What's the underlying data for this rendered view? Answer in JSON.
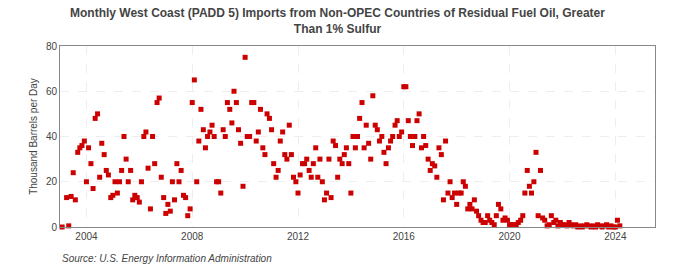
{
  "chart_data": {
    "type": "scatter",
    "title": "Monthly West Coast (PADD 5) Imports from Non-OPEC Countries of Residual Fuel Oil, Greater\nThan 1% Sulfur",
    "ylabel": "Thousand Barrels per Day",
    "annotations": [
      "Source: U.S. Energy Information Administration"
    ],
    "color": "#CC0000",
    "marker": "square",
    "grid": true,
    "xlim": [
      2003.0,
      2025.5
    ],
    "xticks": [
      2004,
      2008,
      2012,
      2016,
      2020,
      2024
    ],
    "ylim": [
      0,
      80
    ],
    "yticks": [
      0,
      20,
      40,
      60,
      80
    ],
    "x": [
      2003.08,
      2003.25,
      2003.33,
      2003.42,
      2003.5,
      2003.58,
      2003.67,
      2003.75,
      2003.83,
      2003.92,
      2004.0,
      2004.08,
      2004.17,
      2004.25,
      2004.33,
      2004.42,
      2004.5,
      2004.58,
      2004.67,
      2004.75,
      2004.83,
      2004.92,
      2005.0,
      2005.08,
      2005.17,
      2005.25,
      2005.33,
      2005.42,
      2005.5,
      2005.58,
      2005.67,
      2005.75,
      2005.83,
      2005.92,
      2006.0,
      2006.08,
      2006.17,
      2006.25,
      2006.33,
      2006.42,
      2006.5,
      2006.58,
      2006.67,
      2006.75,
      2006.83,
      2006.92,
      2007.0,
      2007.08,
      2007.17,
      2007.25,
      2007.33,
      2007.42,
      2007.5,
      2007.58,
      2007.67,
      2007.75,
      2007.83,
      2007.92,
      2008.0,
      2008.08,
      2008.17,
      2008.25,
      2008.33,
      2008.42,
      2008.5,
      2008.58,
      2008.67,
      2008.75,
      2008.83,
      2008.92,
      2009.0,
      2009.08,
      2009.17,
      2009.25,
      2009.33,
      2009.42,
      2009.5,
      2009.58,
      2009.67,
      2009.75,
      2009.83,
      2009.92,
      2010.0,
      2010.08,
      2010.17,
      2010.25,
      2010.33,
      2010.42,
      2010.5,
      2010.58,
      2010.67,
      2010.75,
      2010.83,
      2010.92,
      2011.0,
      2011.08,
      2011.17,
      2011.25,
      2011.33,
      2011.42,
      2011.5,
      2011.58,
      2011.67,
      2011.75,
      2011.83,
      2011.92,
      2012.0,
      2012.08,
      2012.17,
      2012.25,
      2012.33,
      2012.42,
      2012.5,
      2012.58,
      2012.67,
      2012.75,
      2012.83,
      2012.92,
      2013.0,
      2013.08,
      2013.17,
      2013.25,
      2013.33,
      2013.42,
      2013.5,
      2013.58,
      2013.67,
      2013.75,
      2013.83,
      2013.92,
      2014.0,
      2014.08,
      2014.17,
      2014.25,
      2014.33,
      2014.42,
      2014.5,
      2014.58,
      2014.67,
      2014.75,
      2014.83,
      2014.92,
      2015.0,
      2015.08,
      2015.17,
      2015.25,
      2015.33,
      2015.42,
      2015.5,
      2015.58,
      2015.67,
      2015.75,
      2015.83,
      2015.92,
      2016.0,
      2016.08,
      2016.17,
      2016.25,
      2016.33,
      2016.42,
      2016.5,
      2016.58,
      2016.67,
      2016.75,
      2016.83,
      2016.92,
      2017.0,
      2017.08,
      2017.17,
      2017.25,
      2017.33,
      2017.42,
      2017.5,
      2017.58,
      2017.67,
      2017.75,
      2017.83,
      2017.92,
      2018.0,
      2018.08,
      2018.17,
      2018.25,
      2018.33,
      2018.42,
      2018.5,
      2018.58,
      2018.67,
      2018.75,
      2018.83,
      2018.92,
      2019.0,
      2019.08,
      2019.17,
      2019.25,
      2019.33,
      2019.42,
      2019.5,
      2019.58,
      2019.67,
      2019.75,
      2019.83,
      2019.92,
      2020.0,
      2020.08,
      2020.17,
      2020.25,
      2020.33,
      2020.42,
      2020.5,
      2020.58,
      2020.67,
      2020.75,
      2020.83,
      2020.92,
      2021.0,
      2021.08,
      2021.17,
      2021.25,
      2021.33,
      2021.42,
      2021.5,
      2021.58,
      2021.67,
      2021.75,
      2021.83,
      2021.92,
      2022.0,
      2022.08,
      2022.17,
      2022.25,
      2022.33,
      2022.42,
      2022.5,
      2022.58,
      2022.67,
      2022.75,
      2022.83,
      2022.92,
      2023.0,
      2023.08,
      2023.17,
      2023.25,
      2023.33,
      2023.42,
      2023.5,
      2023.58,
      2023.67,
      2023.75,
      2023.83,
      2023.92,
      2024.0,
      2024.08,
      2024.17
    ],
    "values": [
      0.0,
      13.0,
      0.5,
      13.5,
      24.0,
      12.0,
      33.0,
      35.0,
      36.0,
      38.0,
      20.0,
      35.0,
      28.0,
      17.0,
      48.0,
      50.0,
      22.0,
      37.0,
      32.0,
      25.0,
      23.0,
      13.0,
      14.0,
      20.0,
      15.0,
      20.0,
      25.0,
      40.0,
      30.0,
      20.0,
      25.0,
      12.0,
      14.0,
      13.0,
      11.0,
      20.0,
      40.0,
      42.0,
      26.0,
      8.0,
      40.0,
      28.0,
      55.0,
      57.0,
      22.0,
      13.0,
      6.0,
      10.0,
      7.0,
      20.0,
      12.0,
      28.0,
      20.0,
      25.0,
      14.0,
      13.0,
      5.0,
      8.0,
      55.0,
      65.0,
      20.0,
      38.0,
      52.0,
      43.0,
      35.0,
      40.0,
      42.0,
      45.0,
      40.0,
      20.0,
      20.0,
      15.0,
      43.0,
      40.0,
      55.0,
      52.0,
      46.0,
      60.0,
      55.0,
      43.0,
      37.0,
      18.0,
      75.0,
      40.0,
      40.0,
      55.0,
      55.0,
      38.0,
      42.0,
      52.0,
      35.0,
      32.0,
      50.0,
      48.0,
      43.0,
      28.0,
      22.0,
      25.0,
      38.0,
      42.0,
      32.0,
      30.0,
      45.0,
      32.0,
      22.0,
      20.0,
      15.0,
      23.0,
      28.0,
      28.0,
      30.0,
      25.0,
      22.0,
      28.0,
      35.0,
      22.0,
      30.0,
      20.0,
      12.0,
      15.0,
      30.0,
      13.0,
      38.0,
      36.0,
      22.0,
      30.0,
      28.0,
      32.0,
      35.0,
      28.0,
      15.0,
      40.0,
      35.0,
      40.0,
      48.0,
      55.0,
      35.0,
      45.0,
      37.0,
      30.0,
      58.0,
      45.0,
      43.0,
      38.0,
      40.0,
      33.0,
      28.0,
      35.0,
      38.0,
      40.0,
      45.0,
      47.0,
      40.0,
      42.0,
      62.0,
      62.0,
      47.0,
      40.0,
      36.0,
      40.0,
      47.0,
      50.0,
      35.0,
      40.0,
      36.0,
      30.0,
      25.0,
      28.0,
      27.0,
      22.0,
      35.0,
      32.0,
      12.0,
      38.0,
      15.0,
      20.0,
      13.0,
      15.0,
      10.0,
      15.0,
      15.0,
      20.0,
      18.0,
      8.0,
      10.0,
      8.0,
      12.0,
      7.0,
      5.0,
      3.0,
      2.0,
      2.0,
      5.0,
      3.0,
      2.0,
      1.0,
      5.0,
      10.0,
      8.0,
      3.0,
      4.0,
      3.0,
      1.0,
      1.0,
      1.0,
      1.0,
      2.0,
      3.0,
      5.0,
      15.0,
      25.0,
      18.0,
      15.0,
      20.0,
      33.0,
      5.0,
      25.0,
      4.0,
      3.0,
      0.5,
      1.0,
      5.0,
      2.0,
      3.0,
      0.5,
      2.0,
      1.0,
      1.0,
      0.5,
      2.0,
      1.0,
      0.5,
      1.0,
      0.0,
      0.5,
      0.0,
      0.5,
      1.0,
      0.5,
      0.0,
      0.5,
      0.0,
      1.0,
      0.5,
      0.0,
      0.5,
      1.0,
      0.0,
      0.5,
      0.0,
      0.0,
      3.0,
      0.5
    ]
  }
}
